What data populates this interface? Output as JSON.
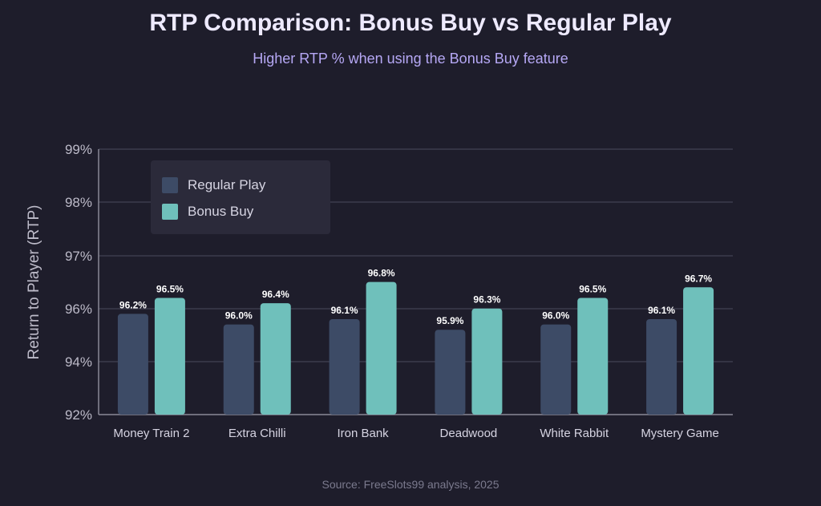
{
  "title": "RTP Comparison: Bonus Buy vs Regular Play",
  "subtitle": "Higher RTP % when using the Bonus Buy feature",
  "source": "Source: FreeSlots99 analysis, 2025",
  "colors": {
    "regular": "#3d4b66",
    "bonus": "#6fc0bb",
    "grid": "#4b4a5c",
    "axis": "#8a8a98",
    "tick_label": "#bdbbc9",
    "category_label": "#d6d4e2",
    "data_label": "#ffffff"
  },
  "chart_data": {
    "type": "bar",
    "title": "RTP Comparison: Bonus Buy vs Regular Play",
    "subtitle": "Higher RTP % when using the Bonus Buy feature",
    "ylabel": "Return to Player (RTP)",
    "xlabel": "",
    "categories": [
      "Money Train 2",
      "Extra Chilli",
      "Iron Bank",
      "Deadwood",
      "White Rabbit",
      "Mystery Game"
    ],
    "y_ticks": [
      "92%",
      "94%",
      "96%",
      "97%",
      "98%",
      "99%"
    ],
    "series": [
      {
        "name": "Regular Play",
        "values": [
          96.2,
          96.0,
          96.1,
          95.9,
          96.0,
          96.1
        ],
        "labels": [
          "96.2%",
          "96.0%",
          "96.1%",
          "95.9%",
          "96.0%",
          "96.1%"
        ]
      },
      {
        "name": "Bonus Buy",
        "values": [
          96.5,
          96.4,
          96.8,
          96.3,
          96.5,
          96.7
        ],
        "labels": [
          "96.5%",
          "96.4%",
          "96.8%",
          "96.3%",
          "96.5%",
          "96.7%"
        ]
      }
    ],
    "grid": true,
    "legend_position": "top-left"
  }
}
